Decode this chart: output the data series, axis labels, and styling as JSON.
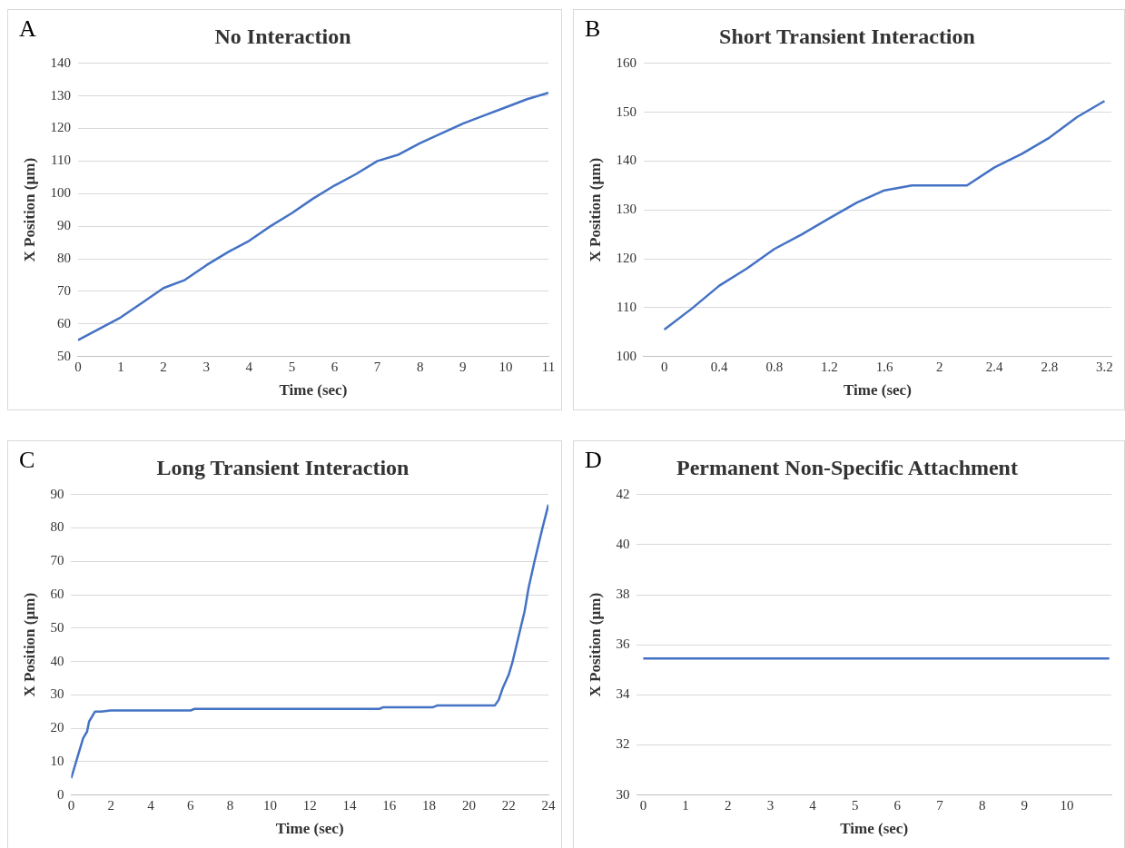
{
  "chart_data": [
    {
      "type": "line",
      "title": "No Interaction",
      "xlabel": "Time (sec)",
      "ylabel": "X Position (µm)",
      "annotations": [
        "A"
      ],
      "xlim": [
        0,
        11
      ],
      "ylim": [
        50,
        140
      ],
      "xticks": [
        0,
        1,
        2,
        3,
        4,
        5,
        6,
        7,
        8,
        9,
        10,
        11
      ],
      "yticks": [
        50,
        60,
        70,
        80,
        90,
        100,
        110,
        120,
        130,
        140
      ],
      "grid": "y",
      "legend": false,
      "marker": "none",
      "line_style": "solid",
      "series": [
        {
          "color": "#4472c4",
          "x": [
            0,
            0.5,
            1,
            1.5,
            2,
            2.5,
            3,
            3.5,
            4,
            4.5,
            5,
            5.5,
            6,
            6.5,
            7,
            7.5,
            8,
            8.5,
            9,
            9.5,
            10,
            10.5,
            11
          ],
          "values": [
            55,
            58.5,
            62,
            66.5,
            71,
            73.5,
            78,
            82,
            85.5,
            90,
            94,
            98.5,
            102.5,
            106,
            110,
            112,
            115.5,
            118.5,
            121.5,
            124,
            126.5,
            129,
            131
          ]
        }
      ]
    },
    {
      "type": "line",
      "title": "Short Transient Interaction",
      "xlabel": "Time (sec)",
      "ylabel": "X Position (µm)",
      "annotations": [
        "B"
      ],
      "xlim": [
        -0.15,
        3.25
      ],
      "ylim": [
        100,
        160
      ],
      "xticks": [
        0,
        0.4,
        0.8,
        1.2,
        1.6,
        2,
        2.4,
        2.8,
        3.2
      ],
      "yticks": [
        100,
        110,
        120,
        130,
        140,
        150,
        160
      ],
      "grid": "y",
      "legend": false,
      "marker": "none",
      "line_style": "solid",
      "series": [
        {
          "color": "#4472c4",
          "x": [
            0,
            0.2,
            0.4,
            0.6,
            0.8,
            1,
            1.2,
            1.4,
            1.6,
            1.8,
            2,
            2.2,
            2.4,
            2.6,
            2.8,
            3,
            3.2
          ],
          "values": [
            105.5,
            109.8,
            114.5,
            118,
            122,
            125,
            128.3,
            131.5,
            134,
            135,
            135,
            135,
            138.7,
            141.5,
            144.8,
            149,
            152.3
          ]
        }
      ]
    },
    {
      "type": "line",
      "title": "Long Transient Interaction",
      "xlabel": "Time (sec)",
      "ylabel": "X Position (µm)",
      "annotations": [
        "C"
      ],
      "xlim": [
        0,
        24
      ],
      "ylim": [
        0,
        90
      ],
      "xticks": [
        0,
        2,
        4,
        6,
        8,
        10,
        12,
        14,
        16,
        18,
        20,
        22,
        24
      ],
      "yticks": [
        0,
        10,
        20,
        30,
        40,
        50,
        60,
        70,
        80,
        90
      ],
      "grid": "y",
      "legend": false,
      "marker": "none",
      "line_style": "solid",
      "series": [
        {
          "color": "#4472c4",
          "x": [
            0,
            0.3,
            0.6,
            0.8,
            0.9,
            1.2,
            1.5,
            2,
            6,
            6.2,
            15.5,
            15.7,
            18.2,
            18.4,
            21.3,
            21.5,
            21.7,
            22,
            22.2,
            22.4,
            22.6,
            22.8,
            23,
            23.3,
            23.5,
            23.7,
            24
          ],
          "values": [
            5,
            11,
            17,
            19,
            22,
            25,
            25,
            25.3,
            25.3,
            25.8,
            25.8,
            26.3,
            26.3,
            26.8,
            26.8,
            28.5,
            32,
            36,
            40,
            45,
            50,
            55,
            62,
            70,
            75,
            80,
            87
          ]
        }
      ]
    },
    {
      "type": "line",
      "title": "Permanent Non-Specific Attachment",
      "xlabel": "Time (sec)",
      "ylabel": "X Position (µm)",
      "annotations": [
        "D"
      ],
      "xlim": [
        -0.15,
        11.05
      ],
      "ylim": [
        30,
        42
      ],
      "xticks": [
        0,
        1,
        2,
        3,
        4,
        5,
        6,
        7,
        8,
        9,
        10
      ],
      "yticks": [
        30,
        32,
        34,
        36,
        38,
        40,
        42
      ],
      "grid": "y",
      "legend": false,
      "marker": "none",
      "line_style": "solid",
      "series": [
        {
          "color": "#4472c4",
          "x": [
            0,
            11
          ],
          "values": [
            35.45,
            35.45
          ]
        }
      ]
    }
  ]
}
